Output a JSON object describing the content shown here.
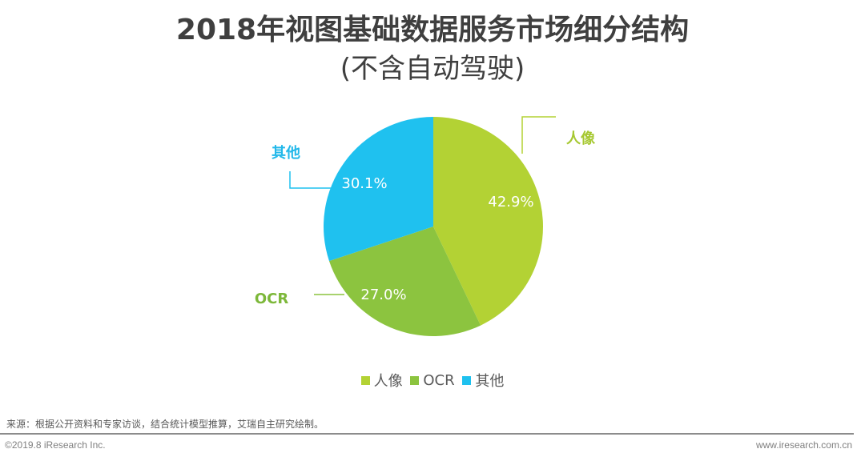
{
  "header": {
    "title": "2018年视图基础数据服务市场细分结构",
    "subtitle": "(不含自动驾驶)"
  },
  "chart_data": {
    "type": "pie",
    "title": "2018年视图基础数据服务市场细分结构",
    "subtitle": "(不含自动驾驶)",
    "categories": [
      "人像",
      "OCR",
      "其他"
    ],
    "values": [
      42.9,
      27.0,
      30.1
    ],
    "value_labels": [
      "42.9%",
      "27.0%",
      "30.1%"
    ],
    "colors": [
      "#b3d234",
      "#8cc43f",
      "#1fc1ef"
    ],
    "start_angle": "12 o'clock",
    "direction": "clockwise",
    "legend_position": "bottom"
  },
  "labels": {
    "portrait": {
      "name": "人像",
      "value": "42.9%",
      "color": "#a6c830"
    },
    "ocr": {
      "name": "OCR",
      "value": "27.0%",
      "color": "#7db83a"
    },
    "other": {
      "name": "其他",
      "value": "30.1%",
      "color": "#22b8ea"
    }
  },
  "legend": {
    "items": [
      {
        "label": "人像",
        "color": "#b3d234"
      },
      {
        "label": "OCR",
        "color": "#8cc43f"
      },
      {
        "label": "其他",
        "color": "#1fc1ef"
      }
    ]
  },
  "footer": {
    "source": "来源：根据公开资料和专家访谈，结合统计模型推算，艾瑞自主研究绘制。",
    "copyright": "©2019.8 iResearch Inc.",
    "website": "www.iresearch.com.cn"
  }
}
